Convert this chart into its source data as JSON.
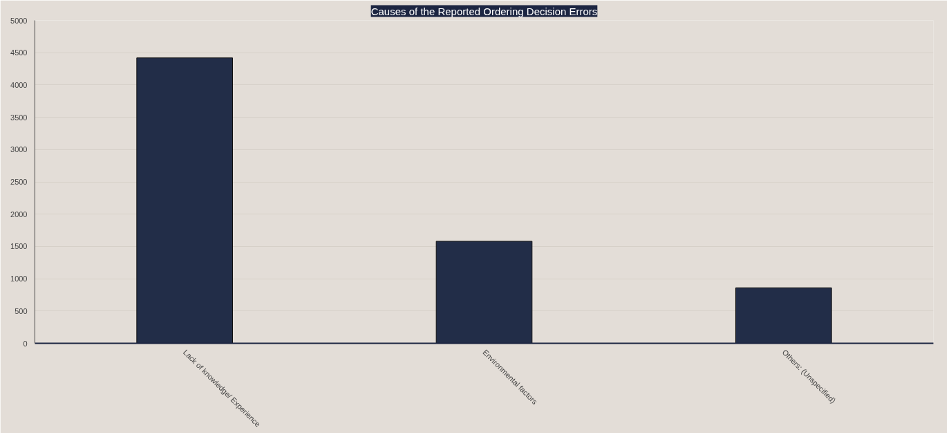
{
  "chart_data": {
    "type": "bar",
    "title": "Causes of the Reported Ordering Decision Errors",
    "categories": [
      "Lack of knowledge/ Experience",
      "Environmental factors",
      "Others: (Unspecified)"
    ],
    "values": [
      4420,
      1580,
      860
    ],
    "color": "#222d48",
    "ylim": [
      0,
      5000
    ],
    "yticks": [
      0,
      500,
      1000,
      1500,
      2000,
      2500,
      3000,
      3500,
      4000,
      4500,
      5000
    ],
    "grid": "y"
  }
}
